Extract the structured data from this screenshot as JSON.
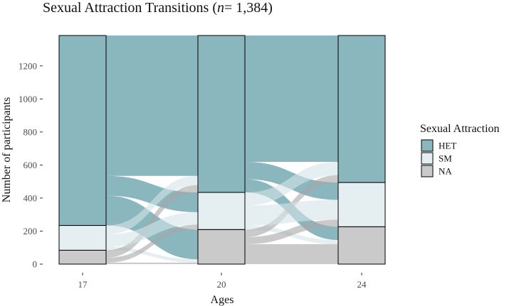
{
  "chart_data": {
    "type": "alluvial",
    "title_main": "Sexual Attraction Transitions (",
    "title_n": "n",
    "title_rest": "= 1,384)",
    "xlabel": "Ages",
    "ylabel": "Number of participants",
    "categories": [
      "17",
      "20",
      "24"
    ],
    "ylim": [
      0,
      1384
    ],
    "y_ticks": [
      0,
      200,
      400,
      600,
      800,
      1000,
      1200
    ],
    "grid": false,
    "legend": {
      "title": "Sexual Attraction",
      "position": "right",
      "entries": [
        {
          "key": "HET",
          "label": "HET",
          "color": "#3c8591"
        },
        {
          "key": "SM",
          "label": "SM",
          "color": "#d4e5e8"
        },
        {
          "key": "NA",
          "label": "NA",
          "color": "#a6a6a6"
        }
      ]
    },
    "stack_order_top_to_bottom": [
      "HET",
      "SM",
      "NA"
    ],
    "strata": {
      "17": {
        "HET": 1150,
        "SM": 150,
        "NA": 84
      },
      "20": {
        "HET": 950,
        "SM": 225,
        "NA": 209
      },
      "24": {
        "HET": 890,
        "SM": 268,
        "NA": 226
      }
    },
    "flows": [
      {
        "from_age": "17",
        "to_age": "20",
        "from": "HET",
        "to": "HET",
        "value": 850
      },
      {
        "from_age": "17",
        "to_age": "20",
        "from": "HET",
        "to": "SM",
        "value": 120
      },
      {
        "from_age": "17",
        "to_age": "20",
        "from": "HET",
        "to": "NA",
        "value": 180
      },
      {
        "from_age": "17",
        "to_age": "20",
        "from": "SM",
        "to": "HET",
        "value": 55
      },
      {
        "from_age": "17",
        "to_age": "20",
        "from": "SM",
        "to": "SM",
        "value": 75
      },
      {
        "from_age": "17",
        "to_age": "20",
        "from": "SM",
        "to": "NA",
        "value": 20
      },
      {
        "from_age": "17",
        "to_age": "20",
        "from": "NA",
        "to": "HET",
        "value": 45
      },
      {
        "from_age": "17",
        "to_age": "20",
        "from": "NA",
        "to": "SM",
        "value": 30
      },
      {
        "from_age": "17",
        "to_age": "20",
        "from": "NA",
        "to": "NA",
        "value": 9
      },
      {
        "from_age": "20",
        "to_age": "24",
        "from": "HET",
        "to": "HET",
        "value": 765
      },
      {
        "from_age": "20",
        "to_age": "24",
        "from": "HET",
        "to": "SM",
        "value": 105
      },
      {
        "from_age": "20",
        "to_age": "24",
        "from": "HET",
        "to": "NA",
        "value": 80
      },
      {
        "from_age": "20",
        "to_age": "24",
        "from": "SM",
        "to": "HET",
        "value": 80
      },
      {
        "from_age": "20",
        "to_age": "24",
        "from": "SM",
        "to": "SM",
        "value": 120
      },
      {
        "from_age": "20",
        "to_age": "24",
        "from": "SM",
        "to": "NA",
        "value": 25
      },
      {
        "from_age": "20",
        "to_age": "24",
        "from": "NA",
        "to": "HET",
        "value": 45
      },
      {
        "from_age": "20",
        "to_age": "24",
        "from": "NA",
        "to": "SM",
        "value": 43
      },
      {
        "from_age": "20",
        "to_age": "24",
        "from": "NA",
        "to": "NA",
        "value": 121
      }
    ]
  }
}
